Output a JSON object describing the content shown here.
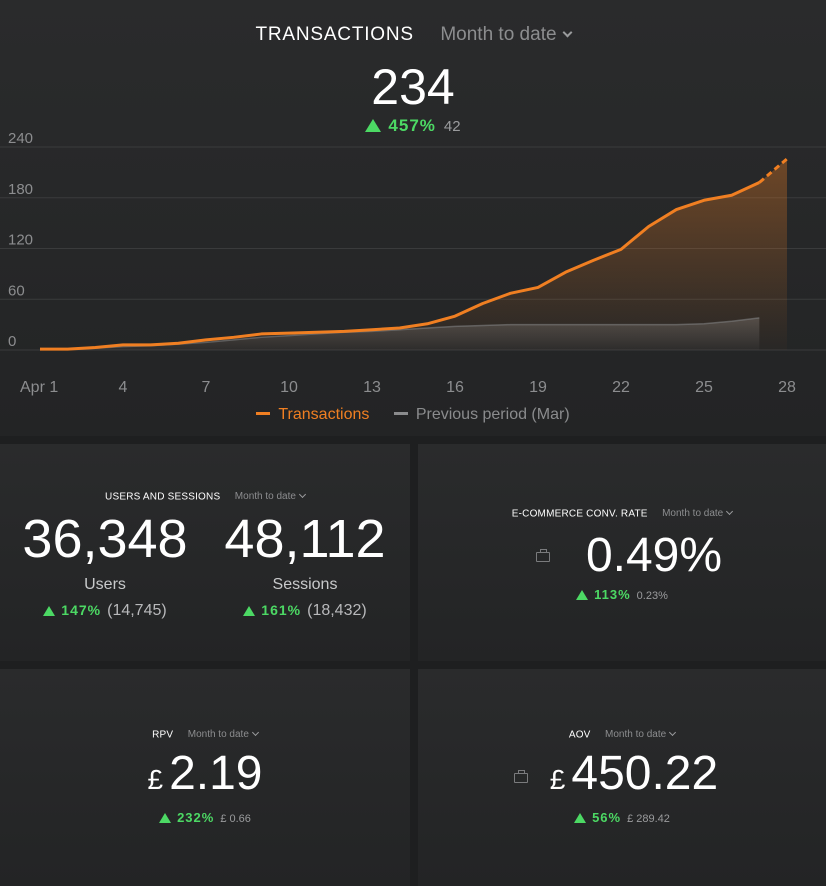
{
  "transactions": {
    "title": "TRANSACTIONS",
    "period": "Month to date",
    "value": "234",
    "delta_pct": "457%",
    "prev_value": "42"
  },
  "chart_data": {
    "type": "line",
    "x_ticks": [
      "Apr 1",
      "4",
      "7",
      "10",
      "13",
      "16",
      "19",
      "22",
      "25",
      "28"
    ],
    "y_ticks": [
      "240",
      "180",
      "120",
      "60",
      "0"
    ],
    "ylim": [
      0,
      240
    ],
    "xlim": [
      1,
      28
    ],
    "series": [
      {
        "name": "Transactions",
        "color": "#f07f22",
        "x": [
          1,
          2,
          3,
          4,
          5,
          6,
          7,
          8,
          9,
          10,
          11,
          12,
          13,
          14,
          15,
          16,
          17,
          18,
          19,
          20,
          21,
          22,
          23,
          24,
          25,
          26,
          27,
          28
        ],
        "values": [
          1,
          1,
          3,
          6,
          6,
          8,
          12,
          15,
          19,
          20,
          21,
          22,
          24,
          26,
          31,
          40,
          55,
          67,
          74,
          92,
          106,
          119,
          146,
          166,
          177,
          183,
          198,
          226
        ],
        "projected_from_x": 27
      },
      {
        "name": "Previous period (Mar)",
        "color": "#8a8b8d",
        "x": [
          1,
          2,
          3,
          4,
          5,
          6,
          7,
          8,
          9,
          10,
          11,
          12,
          13,
          14,
          15,
          16,
          17,
          18,
          19,
          20,
          21,
          22,
          23,
          24,
          25,
          26,
          27
        ],
        "values": [
          1,
          1,
          2,
          4,
          5,
          7,
          9,
          12,
          15,
          17,
          19,
          21,
          22,
          24,
          26,
          28,
          29,
          30,
          30,
          30,
          30,
          30,
          30,
          30,
          31,
          34,
          38
        ]
      }
    ],
    "legend": [
      "Transactions",
      "Previous period (Mar)"
    ],
    "legend_position": "bottom"
  },
  "users_sessions": {
    "title": "USERS AND SESSIONS",
    "period": "Month to date",
    "users": {
      "value": "36,348",
      "label": "Users",
      "delta_pct": "147%",
      "prev": "(14,745)"
    },
    "sessions": {
      "value": "48,112",
      "label": "Sessions",
      "delta_pct": "161%",
      "prev": "(18,432)"
    }
  },
  "conv_rate": {
    "title": "E-COMMERCE CONV. RATE",
    "period": "Month to date",
    "value": "0.49%",
    "delta_pct": "113%",
    "prev": "0.23%",
    "icon": "briefcase-icon"
  },
  "rpv": {
    "title": "RPV",
    "period": "Month to date",
    "currency": "£",
    "value": "2.19",
    "delta_pct": "232%",
    "prev": "£ 0.66"
  },
  "aov": {
    "title": "AOV",
    "period": "Month to date",
    "currency": "£",
    "value": "450.22",
    "delta_pct": "56%",
    "prev": "£ 289.42",
    "icon": "briefcase-icon"
  },
  "colors": {
    "accent": "#f07f22",
    "positive": "#4cd964",
    "previous": "#8a8b8d"
  }
}
